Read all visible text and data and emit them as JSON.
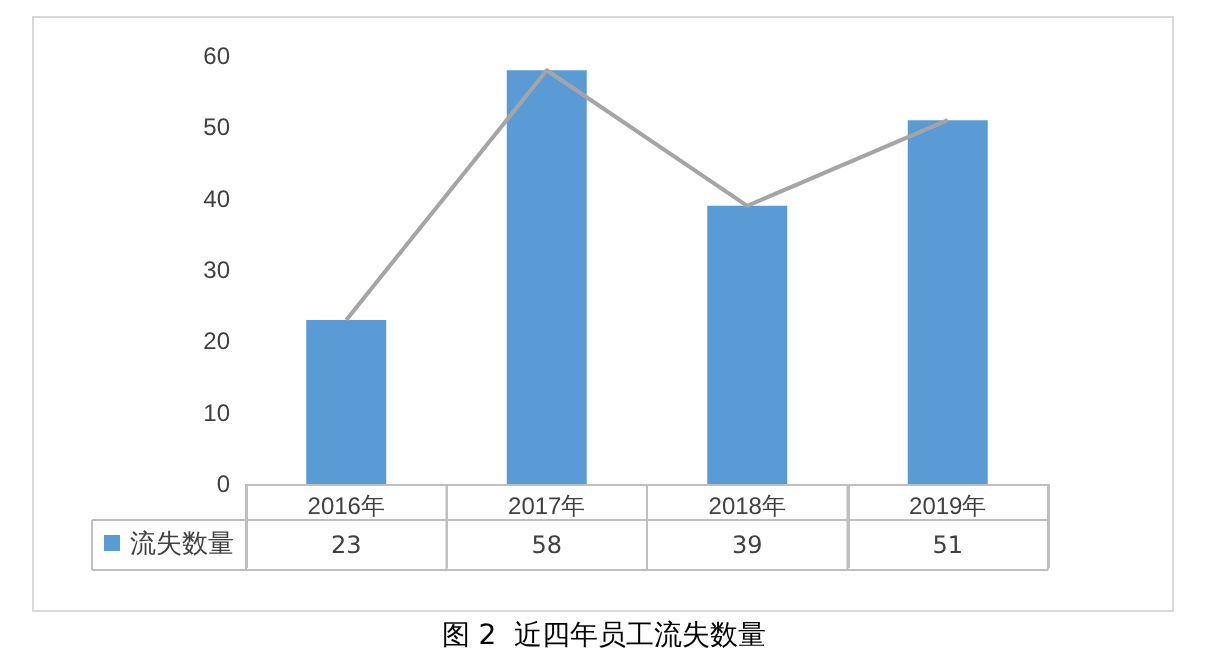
{
  "chart_data": {
    "type": "bar",
    "title": "图 2  近四年员工流失数量",
    "categories": [
      "2016年",
      "2017年",
      "2018年",
      "2019年"
    ],
    "series": [
      {
        "name": "流失数量",
        "color": "#5b9bd5",
        "values": [
          23,
          58,
          39,
          51
        ],
        "value_labels": [
          "23",
          "58",
          "39",
          "51"
        ]
      },
      {
        "type": "line",
        "color": "#a5a5a5",
        "values": [
          23,
          58,
          39,
          51
        ],
        "marker": "none"
      }
    ],
    "ylim": [
      0,
      60
    ],
    "yticks": [
      0,
      10,
      20,
      30,
      40,
      50,
      60
    ],
    "grid": false,
    "legend": "bottom left"
  }
}
